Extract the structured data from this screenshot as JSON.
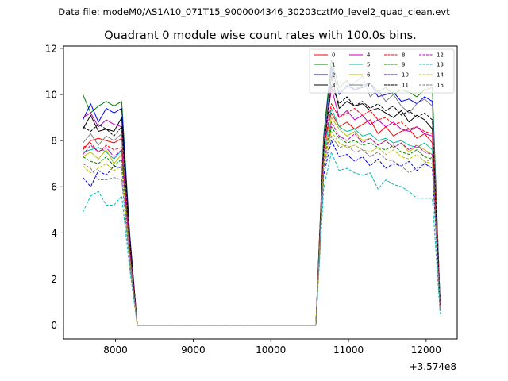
{
  "suptitle": "Data file: modeM0/AS1A10_071T15_9000004346_30203cztM0_level2_quad_clean.evt",
  "chart_data": {
    "type": "line",
    "title": "Quadrant 0 module wise count rates with 100.0s bins.",
    "xlabel": "",
    "ylabel": "",
    "offset_text": "+3.574e8",
    "xlim": [
      7330,
      12400
    ],
    "ylim": [
      -0.6,
      12.1
    ],
    "xticks": [
      8000,
      9000,
      10000,
      11000,
      12000
    ],
    "yticks": [
      0,
      2,
      4,
      6,
      8,
      10,
      12
    ],
    "x": [
      7580,
      7680,
      7780,
      7880,
      7980,
      8080,
      8180,
      8280,
      8380,
      8480,
      8580,
      8680,
      8780,
      8880,
      8980,
      9080,
      9180,
      9280,
      9380,
      9480,
      9580,
      9680,
      9780,
      9880,
      9980,
      10080,
      10180,
      10280,
      10380,
      10480,
      10580,
      10680,
      10780,
      10880,
      10980,
      11080,
      11180,
      11280,
      11380,
      11480,
      11580,
      11680,
      11780,
      11880,
      11980,
      12080,
      12180
    ],
    "legend_position": "upper-right",
    "series": [
      {
        "name": "0",
        "color": "#ff0000",
        "dash": "solid",
        "values": [
          7.6,
          8.0,
          8.1,
          8.0,
          7.9,
          8.1,
          3.5,
          0,
          0,
          0,
          0,
          0,
          0,
          0,
          0,
          0,
          0,
          0,
          0,
          0,
          0,
          0,
          0,
          0,
          0,
          0,
          0,
          0,
          0,
          0,
          0,
          7.8,
          9.2,
          8.6,
          8.8,
          8.5,
          8.7,
          8.9,
          8.3,
          8.6,
          8.2,
          8.4,
          8.5,
          8.1,
          8.3,
          7.9,
          0.9
        ]
      },
      {
        "name": "1",
        "color": "#008000",
        "dash": "solid",
        "values": [
          10.0,
          9.2,
          9.5,
          9.7,
          9.5,
          9.7,
          4.1,
          0,
          0,
          0,
          0,
          0,
          0,
          0,
          0,
          0,
          0,
          0,
          0,
          0,
          0,
          0,
          0,
          0,
          0,
          0,
          0,
          0,
          0,
          0,
          0,
          8.2,
          11.5,
          10.3,
          10.6,
          10.2,
          10.4,
          10.5,
          10.1,
          10.3,
          10.0,
          10.2,
          10.1,
          9.9,
          10.2,
          10.3,
          1.0
        ]
      },
      {
        "name": "2",
        "color": "#0000ff",
        "dash": "solid",
        "values": [
          8.9,
          9.6,
          8.8,
          9.4,
          9.2,
          9.4,
          4.0,
          0,
          0,
          0,
          0,
          0,
          0,
          0,
          0,
          0,
          0,
          0,
          0,
          0,
          0,
          0,
          0,
          0,
          0,
          0,
          0,
          0,
          0,
          0,
          0,
          8.0,
          11.2,
          10.0,
          10.4,
          10.2,
          10.3,
          10.5,
          9.9,
          10.0,
          10.1,
          9.7,
          9.8,
          9.6,
          9.9,
          9.7,
          1.0
        ]
      },
      {
        "name": "3",
        "color": "#000000",
        "dash": "solid",
        "values": [
          8.5,
          9.1,
          8.4,
          8.5,
          8.4,
          9.0,
          3.9,
          0,
          0,
          0,
          0,
          0,
          0,
          0,
          0,
          0,
          0,
          0,
          0,
          0,
          0,
          0,
          0,
          0,
          0,
          0,
          0,
          0,
          0,
          0,
          0,
          7.8,
          10.8,
          9.4,
          9.7,
          9.5,
          9.6,
          9.3,
          9.4,
          9.2,
          9.0,
          9.3,
          8.8,
          9.1,
          8.9,
          8.5,
          0.9
        ]
      },
      {
        "name": "4",
        "color": "#bf00bf",
        "dash": "solid",
        "values": [
          9.0,
          9.2,
          8.6,
          8.9,
          8.7,
          8.6,
          3.7,
          0,
          0,
          0,
          0,
          0,
          0,
          0,
          0,
          0,
          0,
          0,
          0,
          0,
          0,
          0,
          0,
          0,
          0,
          0,
          0,
          0,
          0,
          0,
          0,
          7.5,
          10.3,
          9.0,
          9.3,
          8.9,
          9.1,
          8.7,
          8.9,
          8.6,
          8.8,
          8.5,
          8.4,
          8.6,
          8.3,
          8.2,
          0.9
        ]
      },
      {
        "name": "5",
        "color": "#00bf9f",
        "dash": "solid",
        "values": [
          7.5,
          7.6,
          7.7,
          7.5,
          7.2,
          7.6,
          3.3,
          0,
          0,
          0,
          0,
          0,
          0,
          0,
          0,
          0,
          0,
          0,
          0,
          0,
          0,
          0,
          0,
          0,
          0,
          0,
          0,
          0,
          0,
          0,
          0,
          7.3,
          9.4,
          8.6,
          8.4,
          8.5,
          8.2,
          8.3,
          8.0,
          8.1,
          7.9,
          8.0,
          7.8,
          7.7,
          7.9,
          7.6,
          0.8
        ]
      },
      {
        "name": "6",
        "color": "#bfbf00",
        "dash": "solid",
        "values": [
          7.3,
          7.5,
          7.2,
          7.6,
          7.0,
          7.4,
          3.2,
          0,
          0,
          0,
          0,
          0,
          0,
          0,
          0,
          0,
          0,
          0,
          0,
          0,
          0,
          0,
          0,
          0,
          0,
          0,
          0,
          0,
          0,
          0,
          0,
          7.2,
          9.0,
          8.5,
          8.2,
          8.4,
          8.0,
          8.1,
          7.8,
          8.0,
          7.7,
          7.9,
          7.5,
          7.8,
          7.6,
          7.4,
          0.8
        ]
      },
      {
        "name": "7",
        "color": "#7f7f7f",
        "dash": "solid",
        "values": [
          7.9,
          8.3,
          7.8,
          8.2,
          8.0,
          8.3,
          3.6,
          0,
          0,
          0,
          0,
          0,
          0,
          0,
          0,
          0,
          0,
          0,
          0,
          0,
          0,
          0,
          0,
          0,
          0,
          0,
          0,
          0,
          0,
          0,
          0,
          7.9,
          11.0,
          10.1,
          10.3,
          10.5,
          10.8,
          9.9,
          10.2,
          9.7,
          10.0,
          9.5,
          9.2,
          9.6,
          9.8,
          9.5,
          1.0
        ]
      },
      {
        "name": "8",
        "color": "#ff0000",
        "dash": "dashed",
        "values": [
          7.7,
          7.9,
          7.5,
          7.8,
          7.6,
          7.7,
          3.4,
          0,
          0,
          0,
          0,
          0,
          0,
          0,
          0,
          0,
          0,
          0,
          0,
          0,
          0,
          0,
          0,
          0,
          0,
          0,
          0,
          0,
          0,
          0,
          0,
          7.6,
          9.6,
          9.0,
          9.2,
          9.4,
          9.1,
          9.3,
          8.9,
          9.0,
          8.7,
          8.8,
          8.5,
          8.6,
          8.4,
          8.3,
          0.9
        ]
      },
      {
        "name": "9",
        "color": "#008000",
        "dash": "dashed",
        "values": [
          7.3,
          7.1,
          7.0,
          7.3,
          6.9,
          7.2,
          3.1,
          0,
          0,
          0,
          0,
          0,
          0,
          0,
          0,
          0,
          0,
          0,
          0,
          0,
          0,
          0,
          0,
          0,
          0,
          0,
          0,
          0,
          0,
          0,
          0,
          6.9,
          8.6,
          8.1,
          7.9,
          8.0,
          7.8,
          7.9,
          7.7,
          7.6,
          7.8,
          7.5,
          7.4,
          7.6,
          7.3,
          7.2,
          0.8
        ]
      },
      {
        "name": "10",
        "color": "#0000ff",
        "dash": "dashed",
        "values": [
          6.4,
          6.0,
          6.7,
          6.5,
          6.9,
          6.8,
          2.9,
          0,
          0,
          0,
          0,
          0,
          0,
          0,
          0,
          0,
          0,
          0,
          0,
          0,
          0,
          0,
          0,
          0,
          0,
          0,
          0,
          0,
          0,
          0,
          0,
          6.5,
          8.0,
          7.3,
          7.4,
          7.1,
          7.3,
          6.9,
          7.2,
          6.8,
          7.0,
          6.9,
          7.1,
          6.7,
          7.0,
          6.8,
          0.7
        ]
      },
      {
        "name": "11",
        "color": "#000000",
        "dash": "dashed",
        "values": [
          8.6,
          8.4,
          8.7,
          8.5,
          8.2,
          8.6,
          3.7,
          0,
          0,
          0,
          0,
          0,
          0,
          0,
          0,
          0,
          0,
          0,
          0,
          0,
          0,
          0,
          0,
          0,
          0,
          0,
          0,
          0,
          0,
          0,
          0,
          7.7,
          10.4,
          9.6,
          9.9,
          9.5,
          9.7,
          9.4,
          9.6,
          9.3,
          9.5,
          9.1,
          9.3,
          9.0,
          9.2,
          8.9,
          0.9
        ]
      },
      {
        "name": "12",
        "color": "#bf00bf",
        "dash": "dashed",
        "values": [
          7.4,
          7.8,
          7.5,
          7.7,
          7.3,
          7.6,
          3.3,
          0,
          0,
          0,
          0,
          0,
          0,
          0,
          0,
          0,
          0,
          0,
          0,
          0,
          0,
          0,
          0,
          0,
          0,
          0,
          0,
          0,
          0,
          0,
          0,
          7.1,
          8.8,
          8.2,
          8.0,
          8.3,
          7.9,
          8.1,
          7.8,
          8.0,
          7.7,
          7.9,
          7.6,
          7.8,
          7.5,
          7.4,
          0.8
        ]
      },
      {
        "name": "13",
        "color": "#00bfbf",
        "dash": "dashed",
        "values": [
          4.9,
          5.6,
          5.8,
          5.2,
          5.2,
          5.6,
          2.5,
          0,
          0,
          0,
          0,
          0,
          0,
          0,
          0,
          0,
          0,
          0,
          0,
          0,
          0,
          0,
          0,
          0,
          0,
          0,
          0,
          0,
          0,
          0,
          0,
          5.9,
          7.5,
          6.7,
          6.8,
          6.6,
          6.5,
          6.6,
          5.9,
          6.3,
          6.1,
          6.0,
          5.8,
          5.5,
          5.5,
          5.5,
          0.5
        ]
      },
      {
        "name": "14",
        "color": "#bfbf00",
        "dash": "dashed",
        "values": [
          6.9,
          6.6,
          6.8,
          7.0,
          6.7,
          6.9,
          3.0,
          0,
          0,
          0,
          0,
          0,
          0,
          0,
          0,
          0,
          0,
          0,
          0,
          0,
          0,
          0,
          0,
          0,
          0,
          0,
          0,
          0,
          0,
          0,
          0,
          7.0,
          8.4,
          7.9,
          7.7,
          7.8,
          7.6,
          7.5,
          7.7,
          7.4,
          7.6,
          7.3,
          7.2,
          7.4,
          7.1,
          7.0,
          0.7
        ]
      },
      {
        "name": "15",
        "color": "#7f7f7f",
        "dash": "dashed",
        "values": [
          7.0,
          6.8,
          6.3,
          6.3,
          6.4,
          6.3,
          2.8,
          0,
          0,
          0,
          0,
          0,
          0,
          0,
          0,
          0,
          0,
          0,
          0,
          0,
          0,
          0,
          0,
          0,
          0,
          0,
          0,
          0,
          0,
          0,
          0,
          6.8,
          8.2,
          7.7,
          7.8,
          7.5,
          7.6,
          7.3,
          7.5,
          7.2,
          7.1,
          6.9,
          6.6,
          6.8,
          7.0,
          7.3,
          0.6
        ]
      }
    ]
  }
}
